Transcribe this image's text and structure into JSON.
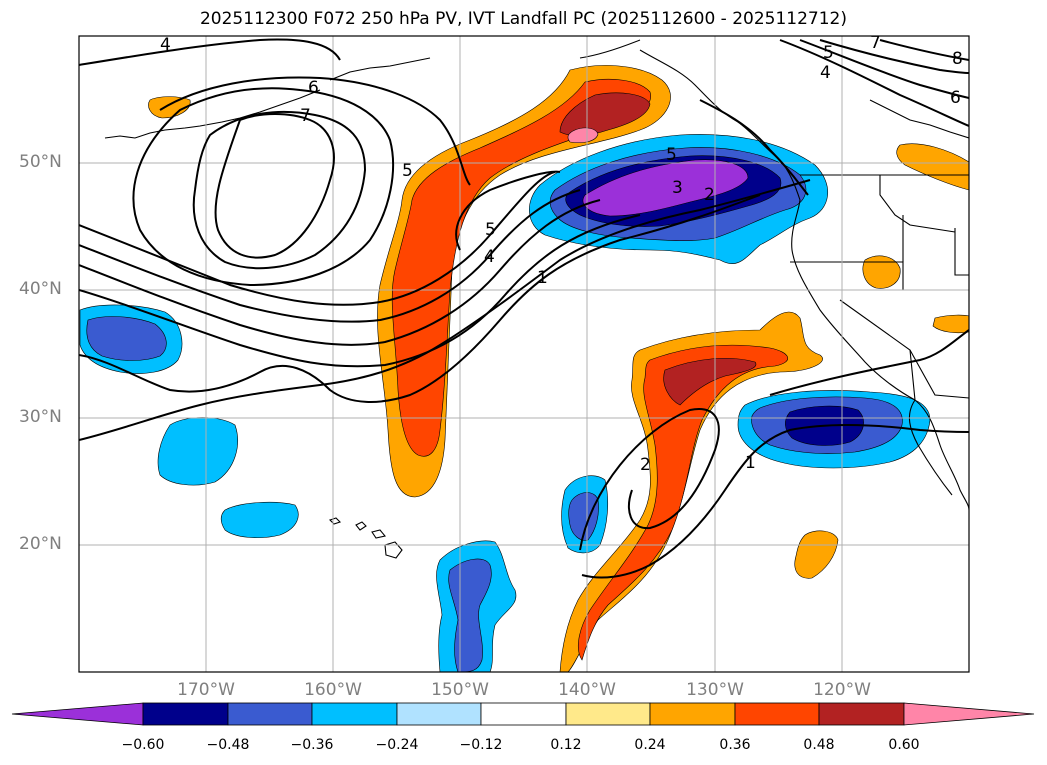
{
  "title": "2025112300 F072 250 hPa PV, IVT Landfall PC (2025112600 - 2025112712)",
  "axes": {
    "lat_labels": [
      "50°N",
      "40°N",
      "30°N",
      "20°N"
    ],
    "lon_labels": [
      "170°W",
      "160°W",
      "150°W",
      "140°W",
      "130°W",
      "120°W"
    ]
  },
  "colorbar": {
    "ticks": [
      "−0.60",
      "−0.48",
      "−0.36",
      "−0.24",
      "−0.12",
      "0.12",
      "0.24",
      "0.36",
      "0.48",
      "0.60"
    ],
    "colors": [
      "#9b30d9",
      "#00008b",
      "#3a5bd0",
      "#00bfff",
      "#b0e2ff",
      "#ffffff",
      "#ffe98a",
      "#ffa500",
      "#ff4500",
      "#b22222",
      "#ff85a8"
    ]
  },
  "contour_labels": [
    "4",
    "6",
    "7",
    "5",
    "5",
    "4",
    "1",
    "5",
    "3",
    "2",
    "5",
    "4",
    "6",
    "7",
    "8",
    "2",
    "1"
  ]
}
